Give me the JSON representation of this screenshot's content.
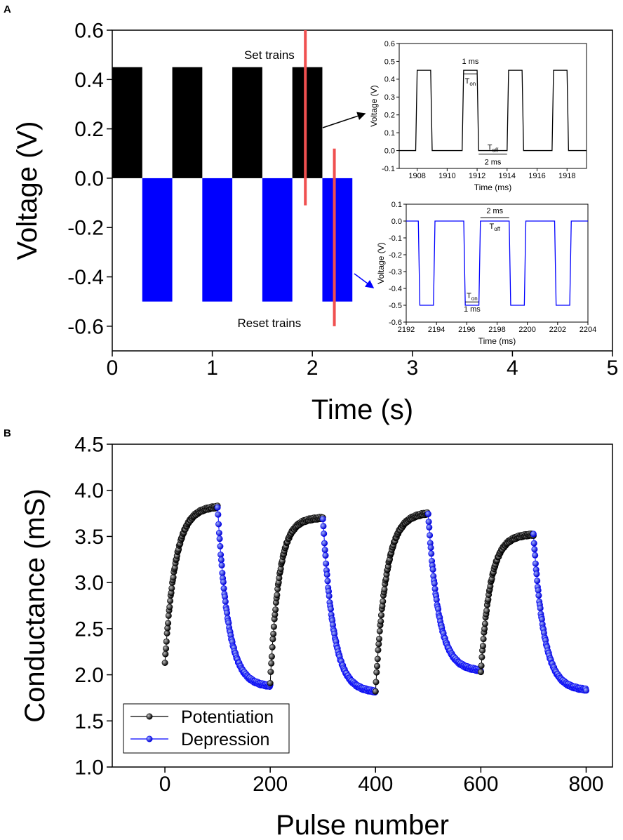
{
  "chart_data": [
    {
      "panel": "A",
      "type": "line",
      "xlabel": "Time (s)",
      "ylabel": "Voltage (V)",
      "xlim": [
        0,
        5
      ],
      "ylim": [
        -0.7,
        0.6
      ],
      "xticks": [
        0,
        1,
        2,
        3,
        4,
        5
      ],
      "yticks": [
        0.6,
        0.4,
        0.2,
        0.0,
        -0.2,
        -0.4,
        -0.6
      ],
      "ytick_labels": [
        "0.6",
        "0.4",
        "0.2",
        "0.0",
        "-0.2",
        "-0.4",
        "-0.6"
      ],
      "series": [
        {
          "name": "Set trains",
          "color": "#000000",
          "level": 0.45,
          "intervals": [
            [
              0,
              0.3
            ],
            [
              0.6,
              0.9
            ],
            [
              1.2,
              1.5
            ],
            [
              1.8,
              2.1
            ]
          ]
        },
        {
          "name": "Reset trains",
          "color": "#0000ff",
          "level": -0.5,
          "intervals": [
            [
              0.3,
              0.6
            ],
            [
              0.9,
              1.2
            ],
            [
              1.5,
              1.8
            ],
            [
              2.1,
              2.4
            ]
          ]
        }
      ],
      "annotations": [
        {
          "text": "Set trains",
          "color": "#000000"
        },
        {
          "text": "Reset trains",
          "color": "#0000ff"
        }
      ],
      "markers": [
        {
          "color": "#f05050",
          "x": 1.93,
          "y_range": [
            -0.11,
            0.6
          ]
        },
        {
          "color": "#f05050",
          "x": 2.22,
          "y_range": [
            -0.6,
            0.12
          ]
        }
      ]
    },
    {
      "panel": "A-inset-top",
      "type": "line",
      "xlabel": "Time (ms)",
      "ylabel": "Voltage (V)",
      "xlim": [
        1906.8,
        1919.3
      ],
      "ylim": [
        -0.1,
        0.6
      ],
      "xticks": [
        1908,
        1910,
        1912,
        1914,
        1916,
        1918
      ],
      "yticks": [
        0.6,
        0.5,
        0.4,
        0.3,
        0.2,
        0.1,
        0.0,
        -0.1
      ],
      "ytick_labels": [
        "0.6",
        "0.5",
        "0.4",
        "0.3",
        "0.2",
        "0.1",
        "0.0",
        "-0.1"
      ],
      "color": "#000000",
      "low": 0.0,
      "high": 0.45,
      "pulses": [
        [
          1907.9,
          1908.9
        ],
        [
          1911.0,
          1912.0
        ],
        [
          1914.0,
          1915.0
        ],
        [
          1917.0,
          1918.0
        ]
      ],
      "annotations": {
        "on_width": "1 ms",
        "off_width": "2 ms",
        "t_on": "T",
        "t_on_sub": "on",
        "t_off": "T",
        "t_off_sub": "off"
      }
    },
    {
      "panel": "A-inset-bottom",
      "type": "line",
      "xlabel": "Time (ms)",
      "ylabel": "Voltage (V)",
      "xlim": [
        2192,
        2204
      ],
      "ylim": [
        -0.6,
        0.1
      ],
      "xticks": [
        2192,
        2194,
        2196,
        2198,
        2200,
        2202,
        2204
      ],
      "yticks": [
        0.1,
        0.0,
        -0.1,
        -0.2,
        -0.3,
        -0.4,
        -0.5,
        -0.6
      ],
      "ytick_labels": [
        "0.1",
        "0.0",
        "-0.1",
        "-0.2",
        "-0.3",
        "-0.4",
        "-0.5",
        "-0.6"
      ],
      "color": "#0000ff",
      "low": -0.5,
      "high": 0.0,
      "pulses": [
        [
          2192.8,
          2193.8
        ],
        [
          2195.8,
          2196.8
        ],
        [
          2198.8,
          2199.8
        ],
        [
          2201.8,
          2202.8
        ]
      ],
      "annotations": {
        "on_width": "1 ms",
        "off_width": "2 ms",
        "t_on": "T",
        "t_on_sub": "on",
        "t_off": "T",
        "t_off_sub": "off"
      }
    },
    {
      "panel": "B",
      "type": "scatter",
      "xlabel": "Pulse number",
      "ylabel": "Conductance (mS)",
      "xlim": [
        -100,
        850
      ],
      "ylim": [
        1.0,
        4.5
      ],
      "xticks": [
        0,
        200,
        400,
        600,
        800
      ],
      "yticks": [
        1.0,
        1.5,
        2.0,
        2.5,
        3.0,
        3.5,
        4.0,
        4.5
      ],
      "ytick_labels": [
        "1.0",
        "1.5",
        "2.0",
        "2.5",
        "3.0",
        "3.5",
        "4.0",
        "4.5"
      ],
      "legend": {
        "position": "bottom-left",
        "entries": [
          "Potentiation",
          "Depression"
        ]
      },
      "series": [
        {
          "name": "Potentiation",
          "color": "#000000",
          "cycles": [
            {
              "x_start": 0,
              "x_end": 100,
              "y0": 2.13,
              "y1": 3.82,
              "rise": 11
            },
            {
              "x_start": 200,
              "x_end": 300,
              "y0": 1.92,
              "y1": 3.7,
              "rise": 13
            },
            {
              "x_start": 400,
              "x_end": 500,
              "y0": 1.83,
              "y1": 3.75,
              "rise": 11
            },
            {
              "x_start": 600,
              "x_end": 700,
              "y0": 2.03,
              "y1": 3.52,
              "rise": 12
            }
          ]
        },
        {
          "name": "Depression",
          "color": "#0000ff",
          "cycles": [
            {
              "x_start": 100,
              "x_end": 200,
              "y0": 3.82,
              "y1": 1.88,
              "fall": 5
            },
            {
              "x_start": 300,
              "x_end": 400,
              "y0": 3.7,
              "y1": 1.82,
              "fall": 5
            },
            {
              "x_start": 500,
              "x_end": 600,
              "y0": 3.75,
              "y1": 2.05,
              "fall": 5
            },
            {
              "x_start": 700,
              "x_end": 800,
              "y0": 3.52,
              "y1": 1.84,
              "fall": 5
            }
          ]
        }
      ]
    }
  ],
  "labels": {
    "panel_a": "A",
    "panel_b": "B"
  }
}
